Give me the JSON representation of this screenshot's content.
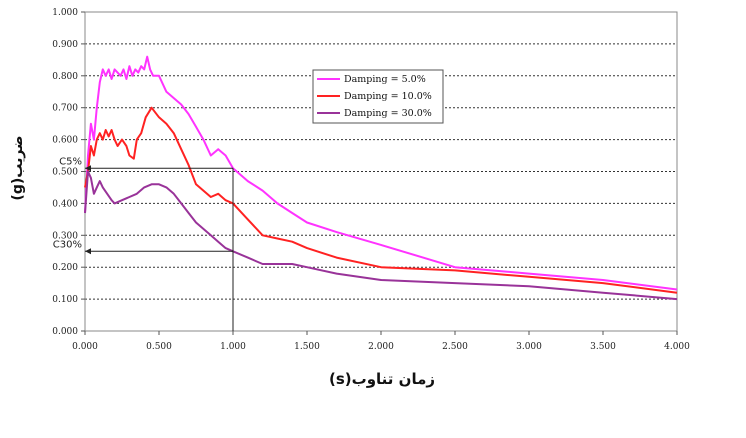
{
  "chart_data": {
    "type": "line",
    "xlabel": "زمان تناوب(s)",
    "ylabel": "ضریب(g)",
    "xlim": [
      0,
      4
    ],
    "ylim": [
      0,
      1
    ],
    "x_ticks": [
      "0.000",
      "0.500",
      "1.000",
      "1.500",
      "2.000",
      "2.500",
      "3.000",
      "3.500",
      "4.000"
    ],
    "y_ticks": [
      "0.000",
      "0.100",
      "0.200",
      "0.300",
      "0.400",
      "0.500",
      "0.600",
      "0.700",
      "0.800",
      "0.900",
      "1.000"
    ],
    "grid": "horizontal dotted",
    "legend_position": "top-right",
    "series": [
      {
        "name": "Damping = 5.0%",
        "color": "#ff33ff",
        "points": [
          [
            0.0,
            0.37
          ],
          [
            0.02,
            0.55
          ],
          [
            0.04,
            0.65
          ],
          [
            0.06,
            0.6
          ],
          [
            0.08,
            0.7
          ],
          [
            0.1,
            0.78
          ],
          [
            0.12,
            0.82
          ],
          [
            0.14,
            0.8
          ],
          [
            0.16,
            0.82
          ],
          [
            0.18,
            0.79
          ],
          [
            0.2,
            0.82
          ],
          [
            0.22,
            0.81
          ],
          [
            0.24,
            0.8
          ],
          [
            0.26,
            0.82
          ],
          [
            0.28,
            0.79
          ],
          [
            0.3,
            0.83
          ],
          [
            0.32,
            0.8
          ],
          [
            0.34,
            0.82
          ],
          [
            0.36,
            0.81
          ],
          [
            0.38,
            0.83
          ],
          [
            0.4,
            0.82
          ],
          [
            0.42,
            0.86
          ],
          [
            0.44,
            0.82
          ],
          [
            0.46,
            0.8
          ],
          [
            0.5,
            0.8
          ],
          [
            0.55,
            0.75
          ],
          [
            0.6,
            0.73
          ],
          [
            0.65,
            0.71
          ],
          [
            0.7,
            0.68
          ],
          [
            0.75,
            0.64
          ],
          [
            0.8,
            0.6
          ],
          [
            0.85,
            0.55
          ],
          [
            0.9,
            0.57
          ],
          [
            0.95,
            0.55
          ],
          [
            1.0,
            0.51
          ],
          [
            1.1,
            0.47
          ],
          [
            1.2,
            0.44
          ],
          [
            1.3,
            0.4
          ],
          [
            1.4,
            0.37
          ],
          [
            1.5,
            0.34
          ],
          [
            1.7,
            0.31
          ],
          [
            2.0,
            0.27
          ],
          [
            2.5,
            0.2
          ],
          [
            3.0,
            0.18
          ],
          [
            3.5,
            0.16
          ],
          [
            4.0,
            0.13
          ]
        ]
      },
      {
        "name": "Damping = 10.0%",
        "color": "#ff2222",
        "points": [
          [
            0.0,
            0.45
          ],
          [
            0.02,
            0.5
          ],
          [
            0.04,
            0.58
          ],
          [
            0.06,
            0.55
          ],
          [
            0.08,
            0.6
          ],
          [
            0.1,
            0.62
          ],
          [
            0.12,
            0.6
          ],
          [
            0.14,
            0.63
          ],
          [
            0.16,
            0.61
          ],
          [
            0.18,
            0.63
          ],
          [
            0.2,
            0.6
          ],
          [
            0.22,
            0.58
          ],
          [
            0.25,
            0.6
          ],
          [
            0.28,
            0.58
          ],
          [
            0.3,
            0.55
          ],
          [
            0.33,
            0.54
          ],
          [
            0.35,
            0.6
          ],
          [
            0.38,
            0.62
          ],
          [
            0.41,
            0.67
          ],
          [
            0.45,
            0.7
          ],
          [
            0.5,
            0.67
          ],
          [
            0.55,
            0.65
          ],
          [
            0.6,
            0.62
          ],
          [
            0.65,
            0.57
          ],
          [
            0.7,
            0.52
          ],
          [
            0.75,
            0.46
          ],
          [
            0.8,
            0.44
          ],
          [
            0.85,
            0.42
          ],
          [
            0.9,
            0.43
          ],
          [
            0.95,
            0.41
          ],
          [
            1.0,
            0.4
          ],
          [
            1.1,
            0.35
          ],
          [
            1.2,
            0.3
          ],
          [
            1.3,
            0.29
          ],
          [
            1.4,
            0.28
          ],
          [
            1.5,
            0.26
          ],
          [
            1.7,
            0.23
          ],
          [
            2.0,
            0.2
          ],
          [
            2.5,
            0.19
          ],
          [
            3.0,
            0.17
          ],
          [
            3.5,
            0.15
          ],
          [
            4.0,
            0.12
          ]
        ]
      },
      {
        "name": "Damping = 30.0%",
        "color": "#993399",
        "points": [
          [
            0.0,
            0.37
          ],
          [
            0.02,
            0.5
          ],
          [
            0.04,
            0.48
          ],
          [
            0.06,
            0.43
          ],
          [
            0.08,
            0.45
          ],
          [
            0.1,
            0.47
          ],
          [
            0.12,
            0.45
          ],
          [
            0.15,
            0.43
          ],
          [
            0.18,
            0.41
          ],
          [
            0.2,
            0.4
          ],
          [
            0.25,
            0.41
          ],
          [
            0.3,
            0.42
          ],
          [
            0.35,
            0.43
          ],
          [
            0.4,
            0.45
          ],
          [
            0.45,
            0.46
          ],
          [
            0.5,
            0.46
          ],
          [
            0.55,
            0.45
          ],
          [
            0.6,
            0.43
          ],
          [
            0.65,
            0.4
          ],
          [
            0.7,
            0.37
          ],
          [
            0.75,
            0.34
          ],
          [
            0.8,
            0.32
          ],
          [
            0.85,
            0.3
          ],
          [
            0.9,
            0.28
          ],
          [
            0.95,
            0.26
          ],
          [
            1.0,
            0.25
          ],
          [
            1.1,
            0.23
          ],
          [
            1.2,
            0.21
          ],
          [
            1.3,
            0.21
          ],
          [
            1.4,
            0.21
          ],
          [
            1.5,
            0.2
          ],
          [
            1.7,
            0.18
          ],
          [
            2.0,
            0.16
          ],
          [
            2.5,
            0.15
          ],
          [
            3.0,
            0.14
          ],
          [
            3.5,
            0.12
          ],
          [
            4.0,
            0.1
          ]
        ]
      }
    ],
    "annotations": [
      {
        "label": "C5%",
        "x": 1.0,
        "y": 0.51
      },
      {
        "label": "C30%",
        "x": 1.0,
        "y": 0.25
      }
    ]
  }
}
